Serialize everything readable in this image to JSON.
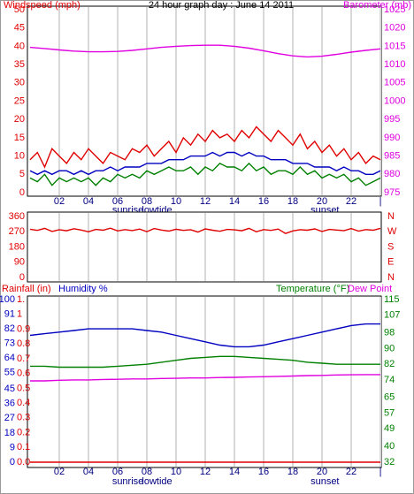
{
  "chart_data": [
    {
      "type": "line",
      "title": "24 hour graph day : June 14 2011",
      "ylabel": "Windspeed (mph)",
      "y2label": "Barometer (mb)",
      "x": [
        0,
        0.5,
        1,
        1.5,
        2,
        2.5,
        3,
        3.5,
        4,
        4.5,
        5,
        5.5,
        6,
        6.5,
        7,
        7.5,
        8,
        8.5,
        9,
        9.5,
        10,
        10.5,
        11,
        11.5,
        12,
        12.5,
        13,
        13.5,
        14,
        14.5,
        15,
        15.5,
        16,
        16.5,
        17,
        17.5,
        18,
        18.5,
        19,
        19.5,
        20,
        20.5,
        21,
        21.5,
        22,
        22.5,
        23,
        23.5,
        24
      ],
      "xlim": [
        0,
        24
      ],
      "xticks": [
        {
          "value": 2,
          "label": "02"
        },
        {
          "value": 4,
          "label": "04"
        },
        {
          "value": 6,
          "label": "06"
        },
        {
          "value": 8,
          "label": "08"
        },
        10,
        12,
        14,
        16,
        18,
        20,
        22,
        {
          "value": 24,
          "label": "|"
        }
      ],
      "annotations": [
        {
          "text": "sunrise",
          "x": 6.7
        },
        {
          "text": "lowtide",
          "x": 8.7
        },
        {
          "text": "sunset",
          "x": 20.2
        }
      ],
      "ylim": [
        0,
        50
      ],
      "yticks": [
        0,
        5,
        10,
        15,
        20,
        25,
        30,
        35,
        40,
        45,
        50
      ],
      "y2lim": [
        975,
        1025
      ],
      "y2ticks": [
        975,
        980,
        985,
        990,
        995,
        1000,
        1005,
        1010,
        1015,
        1020,
        1025
      ],
      "axis_colors": {
        "y": "#e00000",
        "y2": "#e000e0"
      },
      "grid": true,
      "series": [
        {
          "color": "#e00000",
          "values": [
            9,
            11,
            7,
            12,
            10,
            8,
            11,
            9,
            12,
            10,
            8,
            11,
            10,
            9,
            12,
            11,
            13,
            10,
            12,
            14,
            11,
            15,
            13,
            16,
            14,
            17,
            15,
            16,
            14,
            17,
            15,
            18,
            16,
            14,
            17,
            15,
            13,
            16,
            12,
            14,
            11,
            13,
            10,
            12,
            9,
            11,
            8,
            10,
            9
          ]
        },
        {
          "color": "#0000c0",
          "values": [
            6,
            5,
            6,
            5,
            6,
            6,
            5,
            6,
            5,
            6,
            6,
            7,
            6,
            7,
            7,
            7,
            8,
            8,
            8,
            9,
            9,
            9,
            10,
            10,
            10,
            11,
            10,
            11,
            11,
            10,
            11,
            10,
            10,
            9,
            9,
            9,
            8,
            8,
            8,
            7,
            7,
            7,
            6,
            7,
            6,
            6,
            5,
            5,
            6
          ]
        },
        {
          "color": "#008000",
          "values": [
            4,
            3,
            5,
            2,
            4,
            3,
            4,
            3,
            4,
            2,
            4,
            3,
            5,
            4,
            5,
            4,
            6,
            5,
            6,
            7,
            6,
            6,
            7,
            5,
            7,
            6,
            8,
            7,
            7,
            6,
            8,
            6,
            7,
            5,
            6,
            6,
            5,
            7,
            5,
            6,
            4,
            5,
            4,
            5,
            3,
            4,
            2,
            3,
            4
          ]
        },
        {
          "color": "#e000e0",
          "axis": "y2",
          "x": [
            0,
            1,
            2,
            3,
            4,
            5,
            6,
            7,
            8,
            9,
            10,
            11,
            12,
            13,
            14,
            15,
            16,
            17,
            18,
            19,
            20,
            21,
            22,
            23,
            24
          ],
          "values": [
            1014.7,
            1014.4,
            1014.0,
            1013.7,
            1013.5,
            1013.5,
            1013.6,
            1013.9,
            1014.3,
            1014.7,
            1015.0,
            1015.2,
            1015.3,
            1015.3,
            1015.0,
            1014.5,
            1013.8,
            1013.0,
            1012.4,
            1012.1,
            1012.3,
            1012.8,
            1013.4,
            1013.9,
            1014.3
          ]
        }
      ]
    },
    {
      "type": "line",
      "x": [
        0,
        0.5,
        1,
        1.5,
        2,
        2.5,
        3,
        3.5,
        4,
        4.5,
        5,
        5.5,
        6,
        6.5,
        7,
        7.5,
        8,
        8.5,
        9,
        9.5,
        10,
        10.5,
        11,
        11.5,
        12,
        12.5,
        13,
        13.5,
        14,
        14.5,
        15,
        15.5,
        16,
        16.5,
        17,
        17.5,
        18,
        18.5,
        19,
        19.5,
        20,
        20.5,
        21,
        21.5,
        22,
        22.5,
        23,
        23.5,
        24
      ],
      "xlim": [
        0,
        24
      ],
      "ylim": [
        0,
        360
      ],
      "yticks": [
        0,
        90,
        180,
        270,
        360
      ],
      "y2lim": [
        0,
        360
      ],
      "y2ticks": [
        {
          "value": 0,
          "label": "N"
        },
        {
          "value": 90,
          "label": "E"
        },
        {
          "value": 180,
          "label": "S"
        },
        {
          "value": 270,
          "label": "W"
        },
        {
          "value": 360,
          "label": "N"
        }
      ],
      "axis_colors": {
        "y": "#e00000",
        "y2": "#e00000"
      },
      "grid": true,
      "series": [
        {
          "color": "#e00000",
          "values": [
            285,
            278,
            290,
            272,
            282,
            276,
            288,
            280,
            270,
            284,
            279,
            291,
            275,
            283,
            277,
            286,
            271,
            289,
            280,
            274,
            285,
            278,
            282,
            268,
            287,
            279,
            273,
            284,
            281,
            276,
            290,
            270,
            283,
            278,
            286,
            260,
            275,
            282,
            279,
            287,
            272,
            284,
            280,
            276,
            289,
            274,
            283,
            279,
            290
          ]
        }
      ]
    },
    {
      "type": "line",
      "x": [
        0,
        1,
        2,
        3,
        4,
        5,
        6,
        7,
        8,
        9,
        10,
        11,
        12,
        13,
        14,
        15,
        16,
        17,
        18,
        19,
        20,
        21,
        22,
        23,
        24
      ],
      "xlim": [
        0,
        24
      ],
      "xticks": [
        {
          "value": 2,
          "label": "02"
        },
        {
          "value": 4,
          "label": "04"
        },
        {
          "value": 6,
          "label": "06"
        },
        {
          "value": 8,
          "label": "08"
        },
        10,
        12,
        14,
        16,
        18,
        20,
        22,
        {
          "value": 24,
          "label": "|"
        }
      ],
      "annotations": [
        {
          "text": "sunrise",
          "x": 6.7
        },
        {
          "text": "lowtide",
          "x": 8.7
        },
        {
          "text": "sunset",
          "x": 20.2
        }
      ],
      "ylim": [
        0,
        1.1
      ],
      "yticks": [
        {
          "value": 0,
          "label": "0.0"
        },
        0.1,
        0.2,
        0.3,
        0.4,
        0.5,
        0.6,
        0.7,
        0.8,
        0.9,
        1,
        {
          "value": 1.1,
          "label": "1."
        }
      ],
      "y3lim": [
        0,
        100
      ],
      "y3ticks": [
        0,
        9,
        18,
        27,
        36,
        45,
        55,
        64,
        73,
        82,
        91,
        100
      ],
      "y2lim": [
        32,
        115
      ],
      "y2ticks": [
        32,
        40,
        49,
        57,
        65,
        74,
        82,
        90,
        98,
        107,
        115
      ],
      "axis_colors": {
        "y": "#e00000",
        "y2": "#008000",
        "y3": "#0000c0"
      },
      "grid": true,
      "series": [
        {
          "name": "Rainfall (in)",
          "color": "#e00000",
          "values": [
            0,
            0,
            0,
            0,
            0,
            0,
            0,
            0,
            0,
            0,
            0,
            0,
            0,
            0,
            0,
            0,
            0,
            0,
            0,
            0,
            0,
            0,
            0,
            0,
            0
          ]
        },
        {
          "name": "Humidity %",
          "color": "#0000c0",
          "axis": "y3",
          "values": [
            78,
            79,
            80,
            81,
            82,
            82,
            82,
            82,
            81,
            80,
            78,
            76,
            74,
            72,
            71,
            71,
            72,
            74,
            76,
            78,
            80,
            82,
            84,
            85,
            85
          ]
        },
        {
          "name": "Temperature (°F)",
          "color": "#008000",
          "axis": "y2",
          "values": [
            81,
            81,
            80.5,
            80.5,
            80.5,
            80.5,
            81,
            81.5,
            82,
            83,
            84,
            85,
            85.5,
            86,
            86,
            85.5,
            85,
            84.5,
            84,
            83,
            82.5,
            82,
            82,
            82,
            82
          ]
        },
        {
          "name": "Dew Point",
          "color": "#e000e0",
          "axis": "y2",
          "values": [
            73.5,
            73.5,
            73.8,
            74,
            74,
            74.2,
            74.3,
            74.5,
            74.5,
            74.7,
            74.8,
            75,
            75,
            75.2,
            75.3,
            75.5,
            75.6,
            75.8,
            76,
            76.2,
            76.3,
            76.5,
            76.6,
            76.7,
            76.7
          ]
        }
      ]
    }
  ]
}
